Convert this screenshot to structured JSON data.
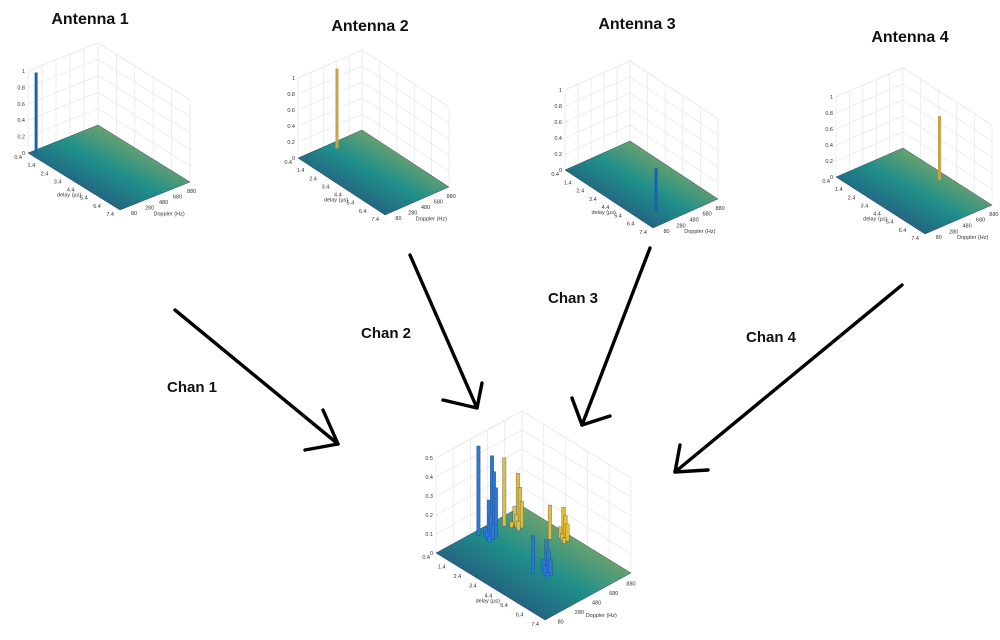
{
  "antennas": [
    {
      "title": "Antenna 1",
      "spike_color": "#1f5fb0",
      "spike_value": 1.0,
      "spike_pos": [
        0.05,
        0.05
      ]
    },
    {
      "title": "Antenna 2",
      "spike_color": "#c8a24a",
      "spike_value": 1.0,
      "spike_pos": [
        0.08,
        0.5
      ]
    },
    {
      "title": "Antenna 3",
      "spike_color": "#1f5fb0",
      "spike_value": 0.55,
      "spike_pos": [
        0.85,
        0.25
      ]
    },
    {
      "title": "Antenna 4",
      "spike_color": "#c8a24a",
      "spike_value": 0.8,
      "spike_pos": [
        0.5,
        0.88
      ]
    }
  ],
  "channels": [
    {
      "label": "Chan 1"
    },
    {
      "label": "Chan 2"
    },
    {
      "label": "Chan 3"
    },
    {
      "label": "Chan 4"
    }
  ],
  "axes": {
    "z_ticks_small": [
      "0",
      "0.2",
      "0.4",
      "0.6",
      "0.8",
      "1"
    ],
    "z_ticks_combined": [
      "0",
      "0.1",
      "0.2",
      "0.3",
      "0.4",
      "0.5"
    ],
    "delay_ticks": [
      "0.4",
      "1.4",
      "2.4",
      "3.4",
      "4.4",
      "5.4",
      "6.4",
      "7.4"
    ],
    "doppler_ticks": [
      "80",
      "280",
      "480",
      "680",
      "880"
    ],
    "delay_label": "delay (µs)",
    "doppler_label": "Doppler (Hz)"
  },
  "colors": {
    "surface_low": "#2a2d78",
    "surface_mid": "#1f8f8a",
    "surface_high": "#c9b94a",
    "blue_peaks": "#2b78d6",
    "gold_peaks": "#e0be3c"
  }
}
